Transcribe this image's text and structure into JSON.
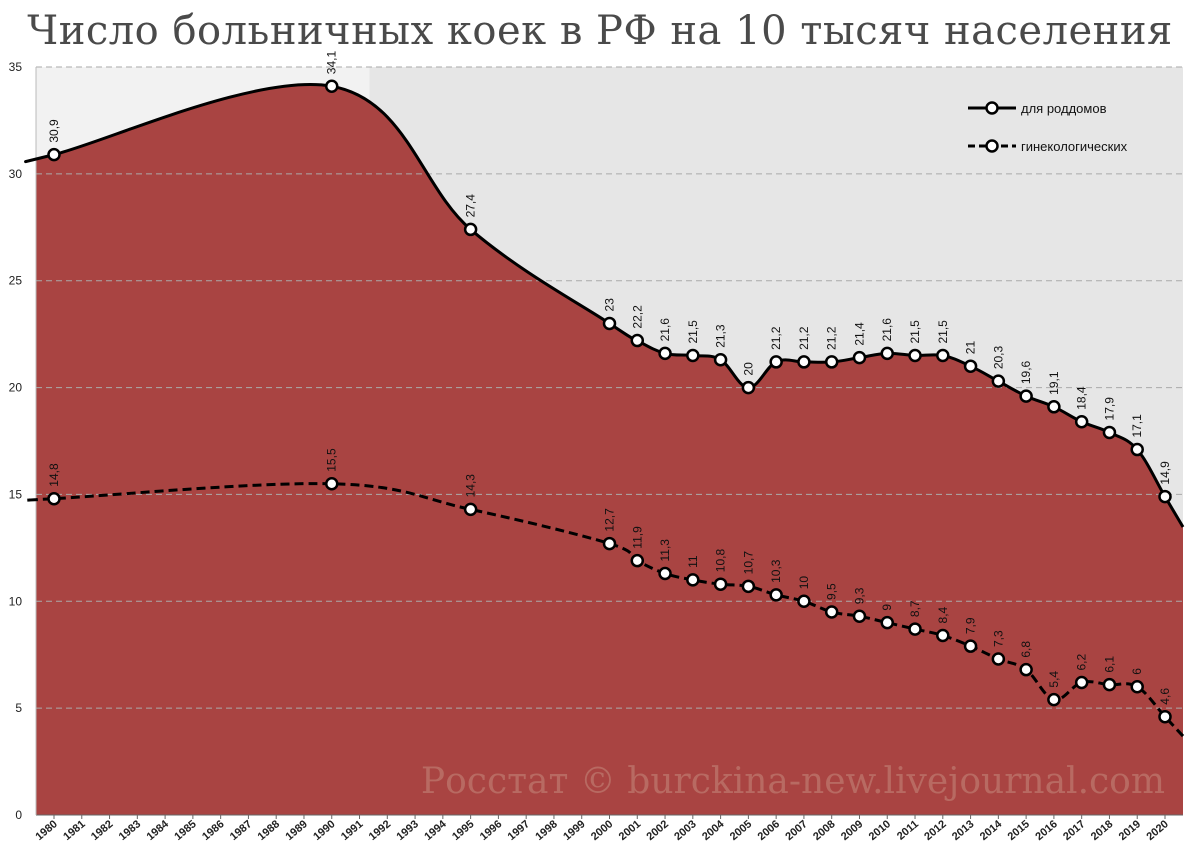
{
  "colors": {
    "area_fill": "#a94442",
    "plot_bg_left": "#f2f2f2",
    "plot_bg_right": "#e6e6e6",
    "grid": "#aaaaaa",
    "line": "#000000",
    "marker_fill": "#ffffff",
    "watermark": "#b86a62"
  },
  "watermark": "Росстат © burckina-new.livejournal.com",
  "chart_data": {
    "type": "line",
    "title": "Число больничных коек в РФ на 10 тысяч населения",
    "xlabel": "",
    "ylabel": "",
    "x_ticks": [
      "1980",
      "1981",
      "1982",
      "1983",
      "1984",
      "1985",
      "1986",
      "1987",
      "1988",
      "1989",
      "1990",
      "1991",
      "1992",
      "1993",
      "1994",
      "1995",
      "1996",
      "1997",
      "1998",
      "1999",
      "2000",
      "2001",
      "2002",
      "2003",
      "2004",
      "2005",
      "2006",
      "2007",
      "2008",
      "2009",
      "2010",
      "2011",
      "2012",
      "2013",
      "2014",
      "2015",
      "2016",
      "2017",
      "2018",
      "2019",
      "2020"
    ],
    "y_ticks": [
      "0",
      "5",
      "10",
      "15",
      "20",
      "25",
      "30",
      "35"
    ],
    "xlim": [
      1980,
      2020
    ],
    "ylim": [
      0,
      35
    ],
    "grid": "horizontal dashed",
    "legend_position": "top-right",
    "shaded_background_from": 1991,
    "series": [
      {
        "name": "для роддомов",
        "style": "solid",
        "x": [
          1980,
          1990,
          1995,
          2000,
          2001,
          2002,
          2003,
          2004,
          2005,
          2006,
          2007,
          2008,
          2009,
          2010,
          2011,
          2012,
          2013,
          2014,
          2015,
          2016,
          2017,
          2018,
          2019,
          2020
        ],
        "values": [
          30.9,
          34.1,
          27.4,
          23,
          22.2,
          21.6,
          21.5,
          21.3,
          20,
          21.2,
          21.2,
          21.2,
          21.4,
          21.6,
          21.5,
          21.5,
          21,
          20.3,
          19.6,
          19.1,
          18.4,
          17.9,
          17.1,
          14.9
        ],
        "labels": [
          "30,9",
          "34,1",
          "27,4",
          "23",
          "22,2",
          "21,6",
          "21,5",
          "21,3",
          "20",
          "21,2",
          "21,2",
          "21,2",
          "21,4",
          "21,6",
          "21,5",
          "21,5",
          "21",
          "20,3",
          "19,6",
          "19,1",
          "18,4",
          "17,9",
          "17,1",
          "14,9"
        ]
      },
      {
        "name": "гинекологических",
        "style": "dashed",
        "x": [
          1980,
          1990,
          1995,
          2000,
          2001,
          2002,
          2003,
          2004,
          2005,
          2006,
          2007,
          2008,
          2009,
          2010,
          2011,
          2012,
          2013,
          2014,
          2015,
          2016,
          2017,
          2018,
          2019,
          2020
        ],
        "values": [
          14.8,
          15.5,
          14.3,
          12.7,
          11.9,
          11.3,
          11,
          10.8,
          10.7,
          10.3,
          10,
          9.5,
          9.3,
          9,
          8.7,
          8.4,
          7.9,
          7.3,
          6.8,
          5.4,
          6.2,
          6.1,
          6,
          4.6
        ],
        "labels": [
          "14,8",
          "15,5",
          "14,3",
          "12,7",
          "11,9",
          "11,3",
          "11",
          "10,8",
          "10,7",
          "10,3",
          "10",
          "9,5",
          "9,3",
          "9",
          "8,7",
          "8,4",
          "7,9",
          "7,3",
          "6,8",
          "5,4",
          "6,2",
          "6,1",
          "6",
          "4,6"
        ]
      }
    ]
  }
}
